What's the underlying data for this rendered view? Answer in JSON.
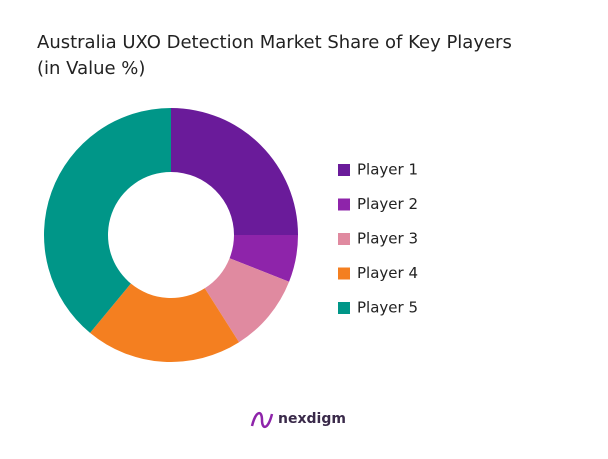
{
  "chart_data": {
    "type": "donut",
    "title": "Australia UXO Detection Market Share of Key Players",
    "subtitle": "(in Value %)",
    "categories": [
      "Player 1",
      "Player 2",
      "Player 3",
      "Player 4",
      "Player 5"
    ],
    "values": [
      25,
      6,
      10,
      20,
      39
    ],
    "colors": [
      "#6a1b9a",
      "#8e24aa",
      "#e08aa0",
      "#f47f20",
      "#009688"
    ],
    "legend": "right"
  },
  "branding": "nexdigm"
}
